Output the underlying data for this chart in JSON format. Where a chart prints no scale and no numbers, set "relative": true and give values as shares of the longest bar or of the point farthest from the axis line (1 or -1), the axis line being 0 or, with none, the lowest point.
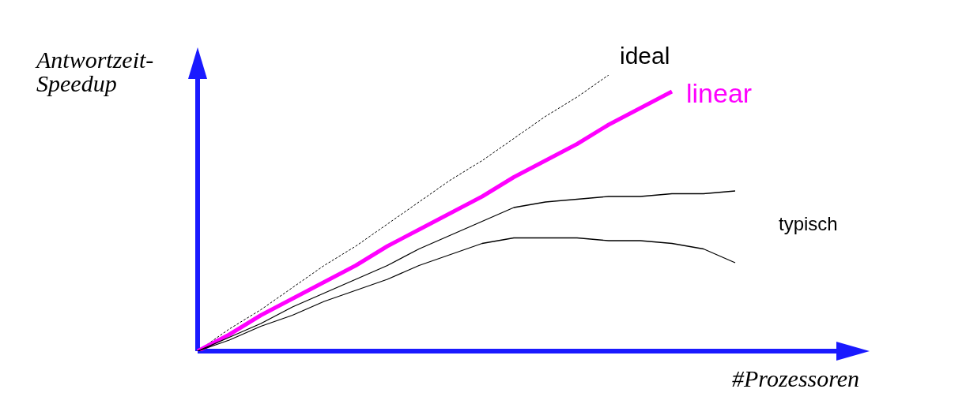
{
  "chart_data": {
    "type": "line",
    "relative": true,
    "xlabel": "#Prozessoren",
    "ylabel": "Antwortzeit-\nSpeedup",
    "marker": "none",
    "categories": [
      null,
      null,
      null,
      null,
      null,
      null,
      null,
      null,
      null,
      null,
      null,
      null,
      null,
      null,
      null,
      null,
      null,
      null,
      null,
      null,
      null,
      null
    ],
    "series": [
      {
        "name": "ideal",
        "color": "#000000",
        "line_style": "dashed",
        "values": [
          0,
          0.08,
          0.15,
          0.23,
          0.31,
          0.38,
          0.46,
          0.54,
          0.62,
          0.69,
          0.77,
          0.85,
          0.92,
          1,
          null,
          null,
          null,
          null,
          null,
          null,
          null,
          null
        ]
      },
      {
        "name": "linear",
        "color": "#ff00ff",
        "line_style": "solid",
        "values": [
          0,
          0.06,
          0.13,
          0.19,
          0.25,
          0.31,
          0.38,
          0.44,
          0.5,
          0.56,
          0.63,
          0.69,
          0.75,
          0.82,
          0.88,
          0.94,
          null,
          null,
          null,
          null,
          null,
          null
        ]
      },
      {
        "name": "typisch",
        "color": "#000000",
        "line_style": "solid",
        "values": [
          0,
          0.05,
          0.1,
          0.16,
          0.21,
          0.26,
          0.31,
          0.37,
          0.42,
          0.47,
          0.52,
          0.54,
          0.55,
          0.56,
          0.56,
          0.57,
          0.57,
          0.58,
          null,
          null,
          null,
          null
        ]
      },
      {
        "color": "#000000",
        "line_style": "solid",
        "values": [
          0,
          0.04,
          0.09,
          0.13,
          0.18,
          0.22,
          0.26,
          0.31,
          0.35,
          0.39,
          0.41,
          0.41,
          0.41,
          0.4,
          0.4,
          0.39,
          0.37,
          0.32,
          null,
          null,
          null,
          null
        ]
      }
    ]
  }
}
